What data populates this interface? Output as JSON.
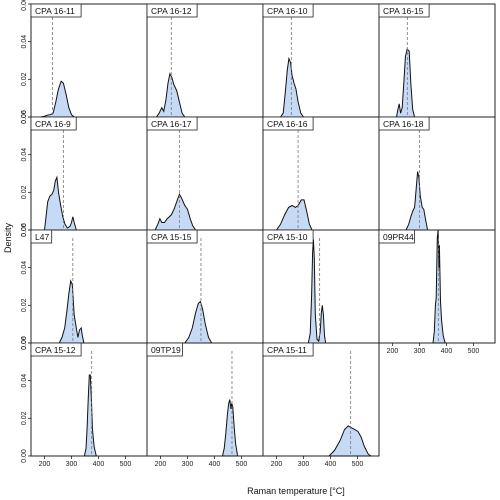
{
  "chart_data": {
    "type": "area",
    "xlabel": "Raman temperature [°C]",
    "ylabel": "Density",
    "xlim": [
      150,
      580
    ],
    "ylim": [
      0,
      0.06
    ],
    "x_ticks": [
      200,
      300,
      400,
      500
    ],
    "y_ticks": [
      "0.00",
      "0.02",
      "0.04",
      "0.06"
    ],
    "panels": [
      {
        "label": "CPA 16-11",
        "mean": 230,
        "curve": [
          [
            185,
            0
          ],
          [
            200,
            0.0004
          ],
          [
            212,
            0.001
          ],
          [
            222,
            0.0012
          ],
          [
            232,
            0.002
          ],
          [
            242,
            0.008
          ],
          [
            252,
            0.015
          ],
          [
            262,
            0.019
          ],
          [
            270,
            0.018
          ],
          [
            280,
            0.012
          ],
          [
            290,
            0.005
          ],
          [
            300,
            0.0012
          ],
          [
            310,
            0
          ]
        ]
      },
      {
        "label": "CPA 16-12",
        "mean": 240,
        "curve": [
          [
            185,
            0
          ],
          [
            195,
            0.002
          ],
          [
            205,
            0.005
          ],
          [
            212,
            0.003
          ],
          [
            220,
            0.009
          ],
          [
            228,
            0.018
          ],
          [
            235,
            0.023
          ],
          [
            242,
            0.021
          ],
          [
            250,
            0.017
          ],
          [
            260,
            0.014
          ],
          [
            270,
            0.008
          ],
          [
            280,
            0.002
          ],
          [
            290,
            0
          ]
        ]
      },
      {
        "label": "CPA 16-10",
        "mean": 255,
        "curve": [
          [
            215,
            0
          ],
          [
            225,
            0.002
          ],
          [
            232,
            0.012
          ],
          [
            240,
            0.025
          ],
          [
            246,
            0.031
          ],
          [
            252,
            0.029
          ],
          [
            258,
            0.022
          ],
          [
            265,
            0.018
          ],
          [
            272,
            0.015
          ],
          [
            280,
            0.008
          ],
          [
            290,
            0.002
          ],
          [
            300,
            0
          ]
        ]
      },
      {
        "label": "CPA 16-15",
        "mean": 255,
        "curve": [
          [
            215,
            0
          ],
          [
            220,
            0.004
          ],
          [
            225,
            0.007
          ],
          [
            230,
            0.002
          ],
          [
            236,
            0.005
          ],
          [
            242,
            0.018
          ],
          [
            248,
            0.032
          ],
          [
            254,
            0.036
          ],
          [
            262,
            0.035
          ],
          [
            268,
            0.018
          ],
          [
            275,
            0.004
          ],
          [
            282,
            0
          ]
        ]
      },
      {
        "label": "CPA 16-9",
        "mean": 270,
        "curve": [
          [
            200,
            0
          ],
          [
            205,
            0.006
          ],
          [
            212,
            0.015
          ],
          [
            220,
            0.018
          ],
          [
            228,
            0.019
          ],
          [
            234,
            0.021
          ],
          [
            240,
            0.026
          ],
          [
            246,
            0.028
          ],
          [
            252,
            0.02
          ],
          [
            260,
            0.013
          ],
          [
            268,
            0.007
          ],
          [
            276,
            0.003
          ],
          [
            285,
            0.001
          ],
          [
            295,
            0.002
          ],
          [
            300,
            0.004
          ],
          [
            305,
            0.007
          ],
          [
            310,
            0.004
          ],
          [
            318,
            0
          ]
        ]
      },
      {
        "label": "CPA 16-17",
        "mean": 270,
        "curve": [
          [
            180,
            0
          ],
          [
            190,
            0.003
          ],
          [
            198,
            0.006
          ],
          [
            205,
            0.004
          ],
          [
            215,
            0.004
          ],
          [
            225,
            0.006
          ],
          [
            240,
            0.008
          ],
          [
            250,
            0.011
          ],
          [
            260,
            0.015
          ],
          [
            270,
            0.019
          ],
          [
            278,
            0.017
          ],
          [
            290,
            0.013
          ],
          [
            300,
            0.011
          ],
          [
            310,
            0.006
          ],
          [
            320,
            0.002
          ],
          [
            330,
            0
          ]
        ]
      },
      {
        "label": "CPA 16-16",
        "mean": 280,
        "curve": [
          [
            200,
            0
          ],
          [
            215,
            0.003
          ],
          [
            230,
            0.008
          ],
          [
            245,
            0.012
          ],
          [
            258,
            0.013
          ],
          [
            270,
            0.012
          ],
          [
            280,
            0.013
          ],
          [
            292,
            0.016
          ],
          [
            302,
            0.016
          ],
          [
            312,
            0.01
          ],
          [
            322,
            0.003
          ],
          [
            332,
            0
          ]
        ]
      },
      {
        "label": "CPA 16-18",
        "mean": 300,
        "curve": [
          [
            250,
            0
          ],
          [
            260,
            0.003
          ],
          [
            268,
            0.007
          ],
          [
            275,
            0.01
          ],
          [
            282,
            0.012
          ],
          [
            288,
            0.022
          ],
          [
            293,
            0.031
          ],
          [
            298,
            0.028
          ],
          [
            303,
            0.018
          ],
          [
            310,
            0.012
          ],
          [
            316,
            0.011
          ],
          [
            322,
            0.006
          ],
          [
            330,
            0
          ]
        ]
      },
      {
        "label": "L47",
        "mean": 305,
        "curve": [
          [
            255,
            0
          ],
          [
            265,
            0.003
          ],
          [
            275,
            0.008
          ],
          [
            283,
            0.017
          ],
          [
            290,
            0.026
          ],
          [
            297,
            0.033
          ],
          [
            303,
            0.031
          ],
          [
            310,
            0.015
          ],
          [
            318,
            0.008
          ],
          [
            324,
            0.003
          ],
          [
            330,
            0.007
          ],
          [
            336,
            0.008
          ],
          [
            340,
            0.004
          ],
          [
            346,
            0
          ]
        ]
      },
      {
        "label": "CPA 15-15",
        "mean": 350,
        "curve": [
          [
            290,
            0
          ],
          [
            305,
            0.003
          ],
          [
            318,
            0.008
          ],
          [
            330,
            0.016
          ],
          [
            340,
            0.021
          ],
          [
            348,
            0.022
          ],
          [
            356,
            0.018
          ],
          [
            366,
            0.01
          ],
          [
            378,
            0.003
          ],
          [
            390,
            0
          ]
        ]
      },
      {
        "label": "CPA 15-10",
        "mean": 360,
        "curve": [
          [
            318,
            0
          ],
          [
            325,
            0.005
          ],
          [
            330,
            0.025
          ],
          [
            334,
            0.048
          ],
          [
            337,
            0.055
          ],
          [
            340,
            0.045
          ],
          [
            344,
            0.015
          ],
          [
            350,
            0.002
          ],
          [
            356,
            0.001
          ],
          [
            362,
            0.006
          ],
          [
            366,
            0.016
          ],
          [
            370,
            0.02
          ],
          [
            374,
            0.015
          ],
          [
            378,
            0.004
          ],
          [
            382,
            0
          ]
        ]
      },
      {
        "label": "09PR44",
        "mean": 370,
        "curve": [
          [
            350,
            0
          ],
          [
            355,
            0.006
          ],
          [
            359,
            0.02
          ],
          [
            362,
            0.024
          ],
          [
            366,
            0.056
          ],
          [
            369,
            0.06
          ],
          [
            372,
            0.04
          ],
          [
            374,
            0.052
          ],
          [
            378,
            0.022
          ],
          [
            382,
            0.012
          ],
          [
            388,
            0.004
          ],
          [
            395,
            0
          ]
        ]
      },
      {
        "label": "CPA 15-12",
        "mean": 375,
        "curve": [
          [
            348,
            0
          ],
          [
            354,
            0.004
          ],
          [
            358,
            0.015
          ],
          [
            362,
            0.03
          ],
          [
            366,
            0.043
          ],
          [
            370,
            0.043
          ],
          [
            374,
            0.03
          ],
          [
            378,
            0.014
          ],
          [
            384,
            0.005
          ],
          [
            392,
            0
          ]
        ]
      },
      {
        "label": "09TP19",
        "mean": 465,
        "curve": [
          [
            430,
            0
          ],
          [
            436,
            0.004
          ],
          [
            442,
            0.012
          ],
          [
            448,
            0.022
          ],
          [
            453,
            0.028
          ],
          [
            457,
            0.03
          ],
          [
            461,
            0.025
          ],
          [
            464,
            0.028
          ],
          [
            468,
            0.026
          ],
          [
            473,
            0.016
          ],
          [
            478,
            0.007
          ],
          [
            486,
            0
          ]
        ]
      },
      {
        "label": "CPA 15-11",
        "mean": 475,
        "curve": [
          [
            395,
            0
          ],
          [
            415,
            0.003
          ],
          [
            435,
            0.008
          ],
          [
            452,
            0.014
          ],
          [
            466,
            0.016
          ],
          [
            478,
            0.015
          ],
          [
            490,
            0.014
          ],
          [
            502,
            0.013
          ],
          [
            514,
            0.01
          ],
          [
            526,
            0.005
          ],
          [
            540,
            0.001
          ],
          [
            550,
            0
          ]
        ]
      }
    ]
  }
}
